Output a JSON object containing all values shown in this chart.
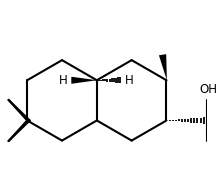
{
  "bg_color": "#ffffff",
  "line_color": "#000000",
  "line_width": 1.5,
  "figsize": [
    2.18,
    1.86
  ],
  "dpi": 100,
  "text_H_left": "H",
  "text_H_right": "H",
  "text_OH": "OH"
}
